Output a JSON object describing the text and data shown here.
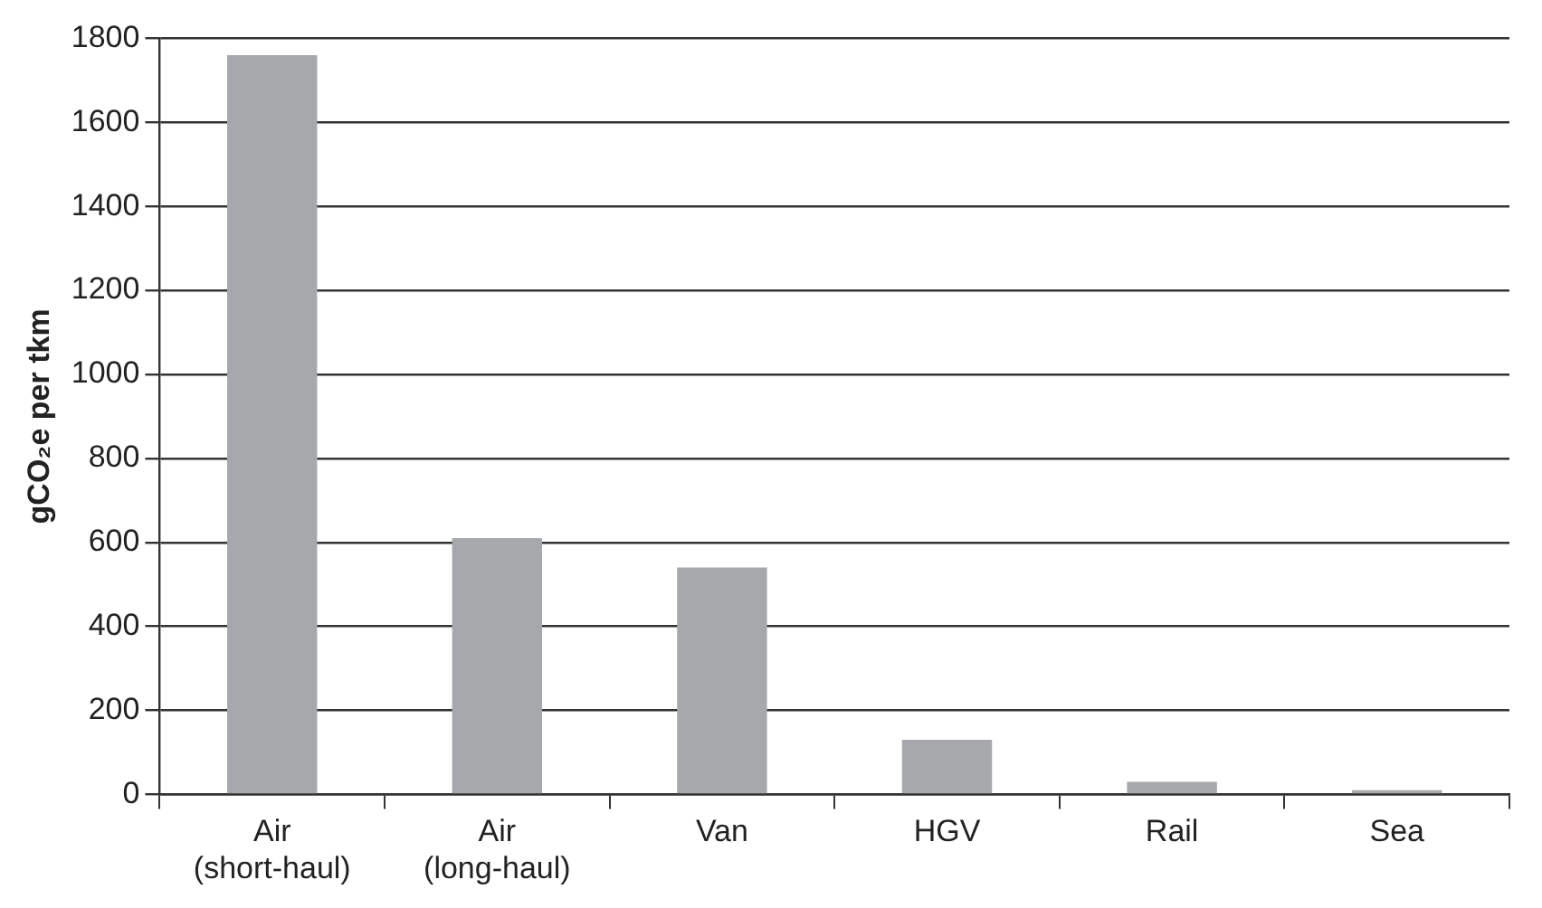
{
  "chart_data": {
    "type": "bar",
    "ylabel": "gCO₂e per tkm",
    "categories": [
      "Air\n(short-haul)",
      "Air\n(long-haul)",
      "Van",
      "HGV",
      "Rail",
      "Sea"
    ],
    "values": [
      1760,
      610,
      540,
      130,
      30,
      10
    ],
    "color": "#a7a8ab",
    "ylim": [
      0,
      1800
    ],
    "yticks": [
      0,
      200,
      400,
      600,
      800,
      1000,
      1200,
      1400,
      1600,
      1800
    ],
    "grid": "y"
  }
}
